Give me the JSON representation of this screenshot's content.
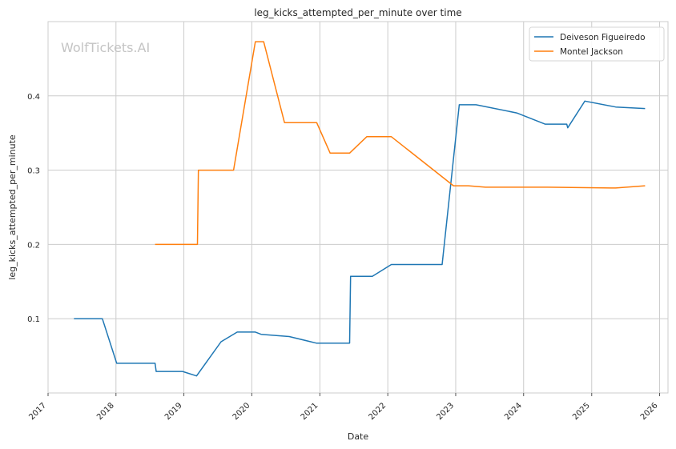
{
  "watermark": "WolfTickets.AI",
  "chart_data": {
    "type": "line",
    "title": "leg_kicks_attempted_per_minute over time",
    "xlabel": "Date",
    "ylabel": "leg_kicks_attempted_per_minute",
    "x_type": "date",
    "xlim": [
      "2017-01-01",
      "2026-02-15"
    ],
    "ylim": [
      0.0,
      0.5
    ],
    "x_ticks": [
      "2017",
      "2018",
      "2019",
      "2020",
      "2021",
      "2022",
      "2023",
      "2024",
      "2025",
      "2026"
    ],
    "y_ticks": [
      "0.1",
      "0.2",
      "0.3",
      "0.4"
    ],
    "y_tick_values": [
      0.1,
      0.2,
      0.3,
      0.4
    ],
    "grid": true,
    "legend_position": "top-right",
    "series": [
      {
        "name": "Deiveson Figueiredo",
        "color": "#1f77b4",
        "points": [
          [
            "2017-05-20",
            0.1
          ],
          [
            "2017-10-20",
            0.1
          ],
          [
            "2018-01-05",
            0.04
          ],
          [
            "2018-07-30",
            0.04
          ],
          [
            "2018-08-05",
            0.029
          ],
          [
            "2018-12-25",
            0.029
          ],
          [
            "2019-03-10",
            0.023
          ],
          [
            "2019-07-20",
            0.069
          ],
          [
            "2019-10-15",
            0.082
          ],
          [
            "2020-01-20",
            0.082
          ],
          [
            "2020-02-20",
            0.079
          ],
          [
            "2020-07-20",
            0.076
          ],
          [
            "2020-12-15",
            0.067
          ],
          [
            "2021-06-10",
            0.067
          ],
          [
            "2021-06-15",
            0.157
          ],
          [
            "2021-10-10",
            0.157
          ],
          [
            "2022-01-20",
            0.173
          ],
          [
            "2022-10-20",
            0.173
          ],
          [
            "2023-01-20",
            0.388
          ],
          [
            "2023-04-20",
            0.388
          ],
          [
            "2023-11-25",
            0.377
          ],
          [
            "2024-04-25",
            0.362
          ],
          [
            "2024-08-20",
            0.362
          ],
          [
            "2024-08-25",
            0.357
          ],
          [
            "2024-11-25",
            0.393
          ],
          [
            "2025-05-10",
            0.385
          ],
          [
            "2025-10-15",
            0.383
          ]
        ]
      },
      {
        "name": "Montel Jackson",
        "color": "#ff7f0e",
        "points": [
          [
            "2018-07-30",
            0.2
          ],
          [
            "2019-03-15",
            0.2
          ],
          [
            "2019-03-20",
            0.3
          ],
          [
            "2019-09-25",
            0.3
          ],
          [
            "2020-01-20",
            0.473
          ],
          [
            "2020-03-05",
            0.473
          ],
          [
            "2020-06-25",
            0.364
          ],
          [
            "2020-12-15",
            0.364
          ],
          [
            "2021-02-25",
            0.323
          ],
          [
            "2021-06-10",
            0.323
          ],
          [
            "2021-09-10",
            0.345
          ],
          [
            "2022-01-20",
            0.345
          ],
          [
            "2022-12-20",
            0.279
          ],
          [
            "2023-03-10",
            0.279
          ],
          [
            "2023-06-10",
            0.277
          ],
          [
            "2024-05-10",
            0.277
          ],
          [
            "2025-05-10",
            0.276
          ],
          [
            "2025-10-15",
            0.279
          ]
        ]
      }
    ]
  }
}
